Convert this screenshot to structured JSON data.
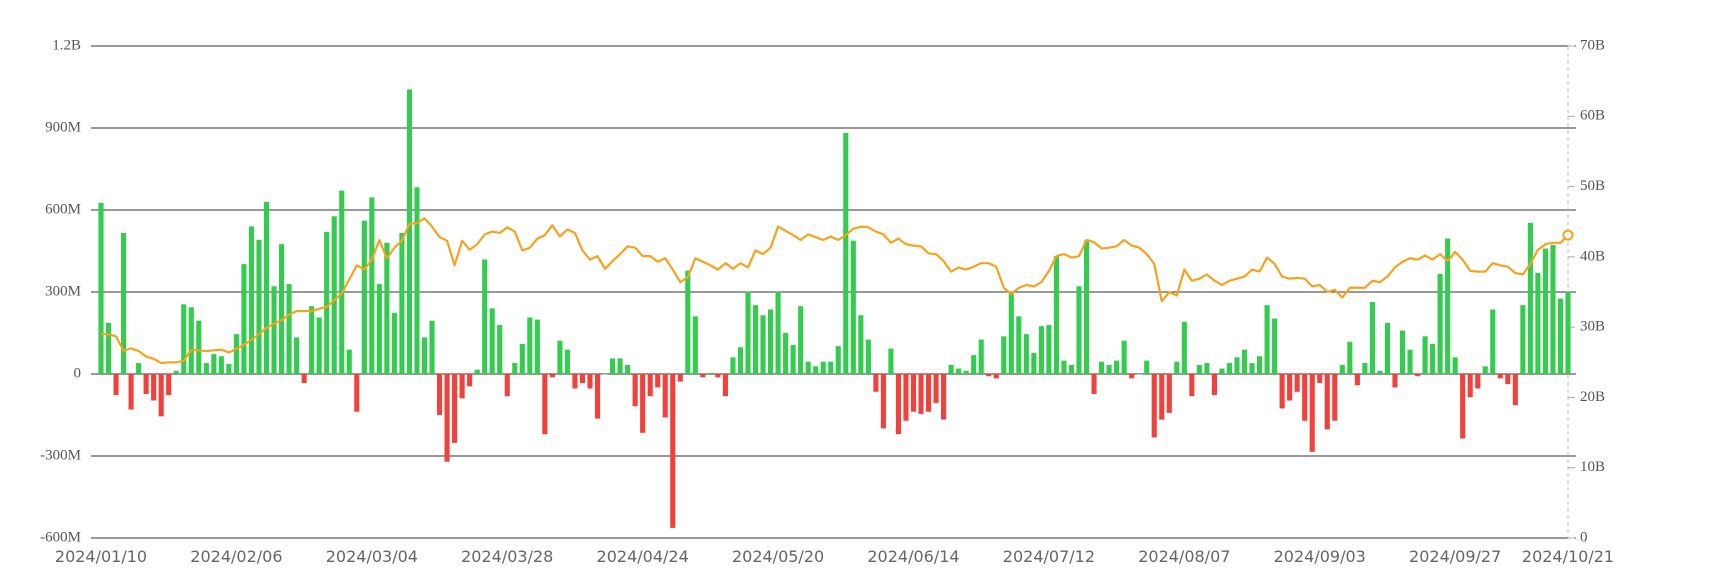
{
  "chart_data": {
    "type": "bar",
    "categories": [
      "2024/01/10",
      null,
      null,
      null,
      null,
      null,
      null,
      null,
      null,
      null,
      null,
      null,
      null,
      null,
      null,
      null,
      null,
      null,
      "2024/02/06",
      null,
      null,
      null,
      null,
      null,
      null,
      null,
      null,
      null,
      null,
      null,
      null,
      null,
      null,
      null,
      null,
      null,
      "2024/03/04",
      null,
      null,
      null,
      null,
      null,
      null,
      null,
      null,
      null,
      null,
      null,
      null,
      null,
      null,
      null,
      null,
      null,
      "2024/03/28",
      null,
      null,
      null,
      null,
      null,
      null,
      null,
      null,
      null,
      null,
      null,
      null,
      null,
      null,
      null,
      null,
      null,
      "2024/04/24",
      null,
      null,
      null,
      null,
      null,
      null,
      null,
      null,
      null,
      null,
      null,
      null,
      null,
      null,
      null,
      null,
      null,
      "2024/05/20",
      null,
      null,
      null,
      null,
      null,
      null,
      null,
      null,
      null,
      null,
      null,
      null,
      null,
      null,
      null,
      null,
      null,
      "2024/06/14",
      null,
      null,
      null,
      null,
      null,
      null,
      null,
      null,
      null,
      null,
      null,
      null,
      null,
      null,
      null,
      null,
      null,
      "2024/07/12",
      null,
      null,
      null,
      null,
      null,
      null,
      null,
      null,
      null,
      null,
      null,
      null,
      null,
      null,
      null,
      null,
      null,
      "2024/08/07",
      null,
      null,
      null,
      null,
      null,
      null,
      null,
      null,
      null,
      null,
      null,
      null,
      null,
      null,
      null,
      null,
      null,
      "2024/09/03",
      null,
      null,
      null,
      null,
      null,
      null,
      null,
      null,
      null,
      null,
      null,
      null,
      null,
      null,
      null,
      null,
      null,
      "2024/09/27",
      null,
      null,
      null,
      null,
      null,
      null,
      null,
      null,
      null,
      null,
      null,
      null,
      null,
      null,
      "2024/10/21"
    ],
    "series": [
      {
        "type": "bar",
        "color": "#33cc4f",
        "negative_color": "#f0413c",
        "values": [
          626000000.0,
          187000000.0,
          -77000000.0,
          516000000.0,
          -130000000.0,
          40000000.0,
          -73000000.0,
          -97000000.0,
          -155000000.0,
          -77000000.0,
          12000000.0,
          255000000.0,
          244000000.0,
          195000000.0,
          40000000.0,
          73000000.0,
          65000000.0,
          37000000.0,
          146000000.0,
          402000000.0,
          540000000.0,
          491000000.0,
          630000000.0,
          321000000.0,
          475000000.0,
          329000000.0,
          134000000.0,
          -33000000.0,
          248000000.0,
          207000000.0,
          520000000.0,
          577000000.0,
          671000000.0,
          89000000.0,
          -138000000.0,
          561000000.0,
          646000000.0,
          329000000.0,
          480000000.0,
          224000000.0,
          516000000.0,
          1041000000.0,
          683000000.0,
          134000000.0,
          195000000.0,
          -150000000.0,
          -321000000.0,
          -252000000.0,
          -89000000.0,
          -45000000.0,
          16000000.0,
          419000000.0,
          240000000.0,
          179000000.0,
          -81000000.0,
          40000000.0,
          110000000.0,
          207000000.0,
          199000000.0,
          -220000000.0,
          -12000000.0,
          122000000.0,
          89000000.0,
          -53000000.0,
          -33000000.0,
          -53000000.0,
          -163000000.0,
          0,
          57000000.0,
          57000000.0,
          33000000.0,
          -118000000.0,
          -215000000.0,
          -81000000.0,
          -49000000.0,
          -159000000.0,
          -563000000.0,
          -28000000.0,
          378000000.0,
          211000000.0,
          -12000000.0,
          4000000.0,
          -12000000.0,
          -81000000.0,
          61000000.0,
          98000000.0,
          301000000.0,
          252000000.0,
          215000000.0,
          236000000.0,
          301000000.0,
          150000000.0,
          106000000.0,
          248000000.0,
          45000000.0,
          28000000.0,
          45000000.0,
          45000000.0,
          102000000.0,
          882000000.0,
          488000000.0,
          215000000.0,
          126000000.0,
          -65000000.0,
          -199000000.0,
          93000000.0,
          -220000000.0,
          -171000000.0,
          -138000000.0,
          -146000000.0,
          -138000000.0,
          -106000000.0,
          -167000000.0,
          33000000.0,
          20000000.0,
          12000000.0,
          69000000.0,
          126000000.0,
          -8000000.0,
          -16000000.0,
          138000000.0,
          301000000.0,
          211000000.0,
          146000000.0,
          77000000.0,
          175000000.0,
          179000000.0,
          431000000.0,
          49000000.0,
          33000000.0,
          321000000.0,
          488000000.0,
          -73000000.0,
          45000000.0,
          33000000.0,
          49000000.0,
          122000000.0,
          -16000000.0,
          0,
          49000000.0,
          -232000000.0,
          -167000000.0,
          -142000000.0,
          45000000.0,
          191000000.0,
          -81000000.0,
          33000000.0,
          40000000.0,
          -77000000.0,
          20000000.0,
          40000000.0,
          61000000.0,
          89000000.0,
          40000000.0,
          65000000.0,
          252000000.0,
          203000000.0,
          -126000000.0,
          -97000000.0,
          -65000000.0,
          -171000000.0,
          -285000000.0,
          -33000000.0,
          -203000000.0,
          -171000000.0,
          33000000.0,
          118000000.0,
          -41000000.0,
          40000000.0,
          264000000.0,
          12000000.0,
          187000000.0,
          -49000000.0,
          159000000.0,
          89000000.0,
          -8000000.0,
          138000000.0,
          110000000.0,
          366000000.0,
          496000000.0,
          61000000.0,
          -236000000.0,
          -85000000.0,
          -53000000.0,
          28000000.0,
          236000000.0,
          -16000000.0,
          -37000000.0,
          -114000000.0,
          252000000.0,
          553000000.0,
          370000000.0,
          459000000.0,
          472000000.0,
          276000000.0,
          301000000.0
        ]
      },
      {
        "type": "line",
        "axis": "y2",
        "color": "#f5a31f",
        "values": [
          29000000000.0,
          29000000000.0,
          28700000000.0,
          26600000000.0,
          27000000000.0,
          26600000000.0,
          25800000000.0,
          25500000000.0,
          24900000000.0,
          25000000000.0,
          25000000000.0,
          25200000000.0,
          26800000000.0,
          26700000000.0,
          26600000000.0,
          26700000000.0,
          26800000000.0,
          26400000000.0,
          26900000000.0,
          27500000000.0,
          28200000000.0,
          29000000000.0,
          29900000000.0,
          30500000000.0,
          31000000000.0,
          31800000000.0,
          32300000000.0,
          32300000000.0,
          32300000000.0,
          32600000000.0,
          32900000000.0,
          33800000000.0,
          34800000000.0,
          36800000000.0,
          38800000000.0,
          38200000000.0,
          39600000000.0,
          42400000000.0,
          39800000000.0,
          41300000000.0,
          42300000000.0,
          44700000000.0,
          44800000000.0,
          45500000000.0,
          44300000000.0,
          42800000000.0,
          42300000000.0,
          38800000000.0,
          42300000000.0,
          41000000000.0,
          41800000000.0,
          43200000000.0,
          43600000000.0,
          43400000000.0,
          44200000000.0,
          43600000000.0,
          40900000000.0,
          41300000000.0,
          42600000000.0,
          43100000000.0,
          44500000000.0,
          42900000000.0,
          43900000000.0,
          43400000000.0,
          40900000000.0,
          39600000000.0,
          40100000000.0,
          38300000000.0,
          39400000000.0,
          40400000000.0,
          41500000000.0,
          41300000000.0,
          40100000000.0,
          40100000000.0,
          39300000000.0,
          39800000000.0,
          38200000000.0,
          36400000000.0,
          37100000000.0,
          39800000000.0,
          39300000000.0,
          38800000000.0,
          38200000000.0,
          39100000000.0,
          38300000000.0,
          39100000000.0,
          38500000000.0,
          40900000000.0,
          40400000000.0,
          41300000000.0,
          44300000000.0,
          43700000000.0,
          43100000000.0,
          42400000000.0,
          43200000000.0,
          42800000000.0,
          42400000000.0,
          42900000000.0,
          42400000000.0,
          43100000000.0,
          44000000000.0,
          44300000000.0,
          44200000000.0,
          43600000000.0,
          43200000000.0,
          42000000000.0,
          42600000000.0,
          41800000000.0,
          41600000000.0,
          41500000000.0,
          40500000000.0,
          40400000000.0,
          39400000000.0,
          37900000000.0,
          38500000000.0,
          38200000000.0,
          38600000000.0,
          39100000000.0,
          39100000000.0,
          38600000000.0,
          35600000000.0,
          34700000000.0,
          35600000000.0,
          36000000000.0,
          35800000000.0,
          36400000000.0,
          38000000000.0,
          40100000000.0,
          40400000000.0,
          39900000000.0,
          40100000000.0,
          42400000000.0,
          42100000000.0,
          41200000000.0,
          41300000000.0,
          41500000000.0,
          42400000000.0,
          41600000000.0,
          41300000000.0,
          40400000000.0,
          39000000000.0,
          33700000000.0,
          35000000000.0,
          34500000000.0,
          38200000000.0,
          36600000000.0,
          36900000000.0,
          37500000000.0,
          36600000000.0,
          36000000000.0,
          36600000000.0,
          36900000000.0,
          37200000000.0,
          38200000000.0,
          37900000000.0,
          39900000000.0,
          39000000000.0,
          37200000000.0,
          36900000000.0,
          37000000000.0,
          36900000000.0,
          35800000000.0,
          36000000000.0,
          35000000000.0,
          35300000000.0,
          34200000000.0,
          35600000000.0,
          35600000000.0,
          35600000000.0,
          36600000000.0,
          36400000000.0,
          37200000000.0,
          38500000000.0,
          39300000000.0,
          39800000000.0,
          39600000000.0,
          40200000000.0,
          39600000000.0,
          40400000000.0,
          39400000000.0,
          40700000000.0,
          39600000000.0,
          38000000000.0,
          37900000000.0,
          37900000000.0,
          39100000000.0,
          38800000000.0,
          38600000000.0,
          37700000000.0,
          37500000000.0,
          39000000000.0,
          41000000000.0,
          41800000000.0,
          42000000000.0,
          42000000000.0,
          43100000000.0
        ]
      }
    ],
    "ylim": [
      -600000000.0,
      1200000000.0
    ],
    "yticks": [
      {
        "value": -600000000.0,
        "label": "-600M"
      },
      {
        "value": -300000000.0,
        "label": "-300M"
      },
      0,
      {
        "value": 300000000.0,
        "label": "300M"
      },
      {
        "value": 600000000.0,
        "label": "600M"
      },
      {
        "value": 900000000.0,
        "label": "900M"
      },
      {
        "value": 1200000000.0,
        "label": "1.2B"
      }
    ],
    "y2lim": [
      0,
      70000000000.0
    ],
    "y2ticks": [
      0,
      {
        "value": 10000000000.0,
        "label": "10B"
      },
      {
        "value": 20000000000.0,
        "label": "20B"
      },
      {
        "value": 30000000000.0,
        "label": "30B"
      },
      {
        "value": 40000000000.0,
        "label": "40B"
      },
      {
        "value": 50000000000.0,
        "label": "50B"
      },
      {
        "value": 60000000000.0,
        "label": "60B"
      },
      {
        "value": 70000000000.0,
        "label": "70B"
      }
    ],
    "grid": true
  }
}
